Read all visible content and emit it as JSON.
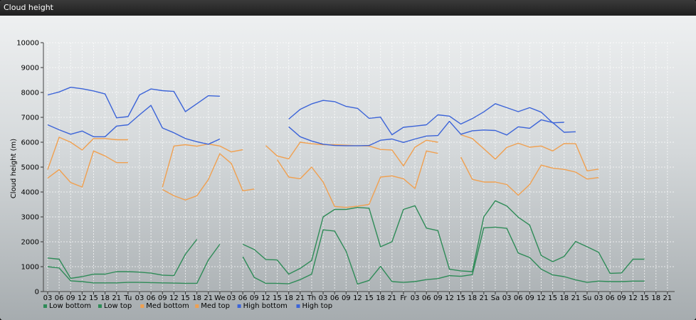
{
  "window": {
    "title": "Cloud height"
  },
  "chart_data": {
    "type": "line",
    "title": "Cloud height",
    "ylabel": "Cloud height (m)",
    "xlabel": "",
    "ylim": [
      0,
      10000
    ],
    "yticks": [
      0,
      1000,
      2000,
      3000,
      4000,
      5000,
      6000,
      7000,
      8000,
      9000,
      10000
    ],
    "x_ticks": [
      "03",
      "06",
      "09",
      "12",
      "15",
      "18",
      "21",
      "Tu",
      "03",
      "06",
      "09",
      "12",
      "15",
      "18",
      "21",
      "We",
      "03",
      "06",
      "09",
      "12",
      "15",
      "18",
      "21",
      "Th",
      "03",
      "06",
      "09",
      "12",
      "15",
      "18",
      "21",
      "Fr",
      "03",
      "06",
      "09",
      "12",
      "15",
      "18",
      "21",
      "Sa",
      "03",
      "06",
      "09",
      "12",
      "15",
      "18",
      "21",
      "Su",
      "03",
      "06",
      "09",
      "12",
      "15",
      "18",
      "21"
    ],
    "grid": true,
    "legend_position": "bottom-left",
    "colors": {
      "low": "#2e8b57",
      "med": "#f0a050",
      "high": "#3c64d8"
    },
    "series": [
      {
        "name": "Low bottom",
        "color": "#2e8b57",
        "values": [
          1000,
          950,
          430,
          400,
          350,
          350,
          350,
          370,
          370,
          360,
          350,
          340,
          330,
          330,
          1270,
          1900,
          null,
          1400,
          570,
          330,
          330,
          310,
          480,
          700,
          2480,
          2430,
          1620,
          300,
          450,
          1010,
          400,
          370,
          400,
          480,
          520,
          640,
          610,
          680,
          2560,
          2590,
          2540,
          1550,
          1370,
          900,
          670,
          600,
          470,
          370,
          420,
          400,
          400,
          420,
          420,
          null,
          null,
          null,
          null
        ]
      },
      {
        "name": "Low top",
        "color": "#2e8b57",
        "values": [
          1350,
          1300,
          530,
          600,
          700,
          700,
          800,
          800,
          780,
          740,
          660,
          640,
          1500,
          2100,
          null,
          null,
          null,
          1900,
          1690,
          1290,
          1270,
          700,
          930,
          1250,
          3000,
          3300,
          3300,
          3380,
          3350,
          1800,
          2000,
          3300,
          3450,
          2550,
          2450,
          900,
          830,
          800,
          3000,
          3650,
          3440,
          2990,
          2670,
          1450,
          1200,
          1410,
          2010,
          1800,
          1580,
          730,
          750,
          1300,
          1300,
          null,
          null,
          null,
          null
        ]
      },
      {
        "name": "Med bottom",
        "color": "#f0a050",
        "values": [
          4560,
          4900,
          4380,
          4200,
          5650,
          5450,
          5180,
          5180,
          null,
          null,
          4100,
          3850,
          3680,
          3850,
          4500,
          5540,
          5150,
          4050,
          4120,
          null,
          5300,
          4600,
          4530,
          5000,
          4400,
          3420,
          3380,
          3430,
          3500,
          4600,
          4650,
          4530,
          4140,
          5650,
          5550,
          null,
          5400,
          4510,
          4400,
          4400,
          4300,
          3870,
          4300,
          5080,
          4960,
          4910,
          4800,
          4520,
          4580,
          null,
          null,
          null,
          null,
          null,
          null,
          null,
          null
        ]
      },
      {
        "name": "Med top",
        "color": "#f0a050",
        "values": [
          4900,
          6200,
          6000,
          5690,
          6150,
          6150,
          6100,
          6100,
          null,
          null,
          4200,
          5850,
          5900,
          5840,
          5930,
          5850,
          5610,
          5700,
          null,
          5870,
          5450,
          5330,
          6000,
          5940,
          5900,
          5900,
          5880,
          5860,
          5850,
          5710,
          5690,
          5050,
          5800,
          6080,
          6000,
          null,
          6300,
          6150,
          5740,
          5320,
          5790,
          5960,
          5800,
          5850,
          5650,
          5950,
          5940,
          4850,
          4920,
          null,
          null,
          null,
          null,
          null,
          null,
          null,
          null
        ]
      },
      {
        "name": "High bottom",
        "color": "#3c64d8",
        "values": [
          6700,
          6500,
          6320,
          6450,
          6220,
          6220,
          6650,
          6700,
          7100,
          7480,
          6570,
          6380,
          6150,
          6020,
          5920,
          6130,
          null,
          null,
          null,
          null,
          null,
          6620,
          6220,
          6050,
          5920,
          5870,
          5860,
          5860,
          5870,
          6080,
          6130,
          5990,
          6130,
          6250,
          6270,
          6840,
          6320,
          6460,
          6490,
          6470,
          6290,
          6620,
          6560,
          6900,
          6790,
          6400,
          6420,
          null,
          null,
          null,
          null,
          null,
          null,
          null,
          null,
          null,
          null
        ]
      },
      {
        "name": "High top",
        "color": "#3c64d8",
        "values": [
          7900,
          8020,
          8210,
          8150,
          8060,
          7940,
          6980,
          7030,
          7900,
          8140,
          8070,
          8040,
          7230,
          7550,
          7870,
          7850,
          null,
          null,
          null,
          null,
          null,
          6930,
          7320,
          7540,
          7680,
          7630,
          7440,
          7360,
          6960,
          7010,
          6300,
          6600,
          6650,
          6700,
          7100,
          7050,
          6730,
          6950,
          7220,
          7550,
          7390,
          7230,
          7390,
          7210,
          6780,
          6800,
          null,
          null,
          null,
          null,
          null,
          null,
          null,
          null,
          null,
          null,
          null
        ]
      }
    ]
  }
}
